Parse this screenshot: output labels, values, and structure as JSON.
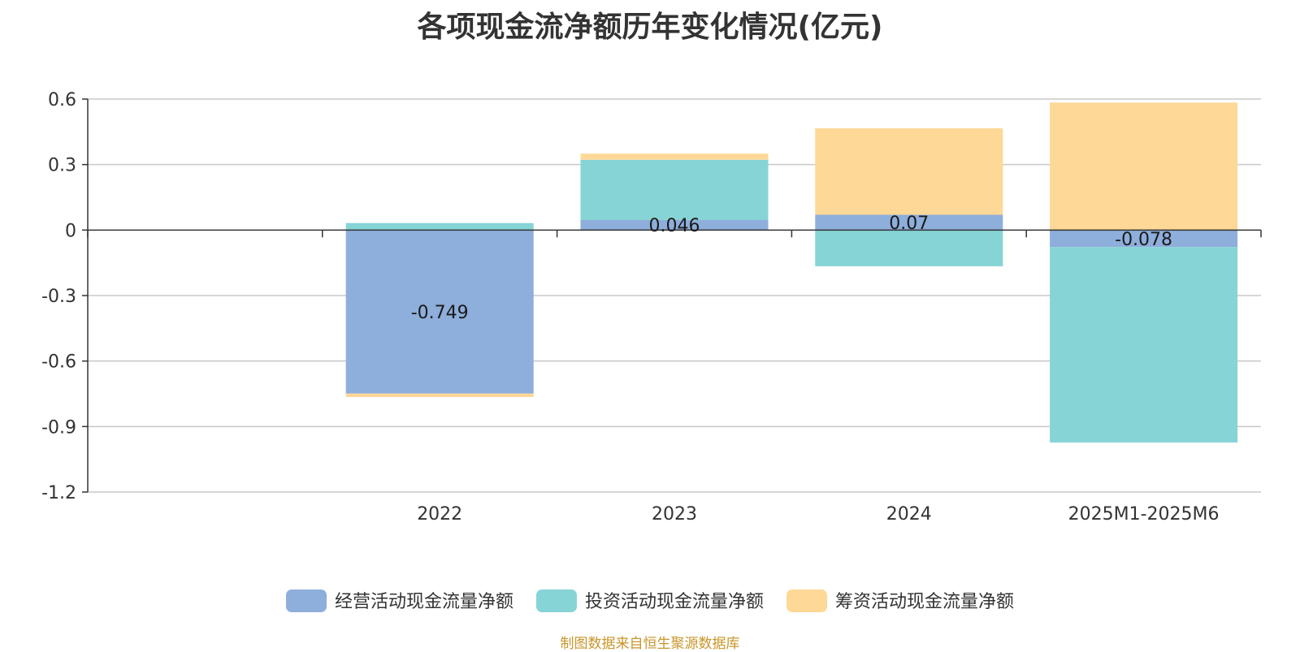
{
  "chart_data": {
    "type": "bar",
    "stacked": true,
    "title": "各项现金流净额历年变化情况(亿元)",
    "categories": [
      "",
      "2022",
      "2023",
      "2024",
      "2025M1-2025M6"
    ],
    "ylim": [
      -1.2,
      0.6
    ],
    "yticks": [
      "0.6",
      "0.3",
      "0",
      "-0.3",
      "-0.6",
      "-0.9",
      "-1.2"
    ],
    "ytick_values": [
      0.6,
      0.3,
      0,
      -0.3,
      -0.6,
      -0.9,
      -1.2
    ],
    "grid": true,
    "legend_position": "bottom",
    "series": [
      {
        "name": "经营活动现金流量净额",
        "color": "#8eaedb",
        "values": [
          null,
          -0.749,
          0.046,
          0.07,
          -0.078
        ],
        "labels": [
          "",
          "-0.749",
          "0.046",
          "0.07",
          "-0.078"
        ]
      },
      {
        "name": "投资活动现金流量净额",
        "color": "#86d4d6",
        "values": [
          null,
          0.032,
          0.276,
          -0.166,
          -0.895
        ]
      },
      {
        "name": "筹资活动现金流量净额",
        "color": "#fed897",
        "values": [
          null,
          -0.016,
          0.028,
          0.396,
          0.584
        ]
      }
    ]
  },
  "source_note": "制图数据来自恒生聚源数据库"
}
